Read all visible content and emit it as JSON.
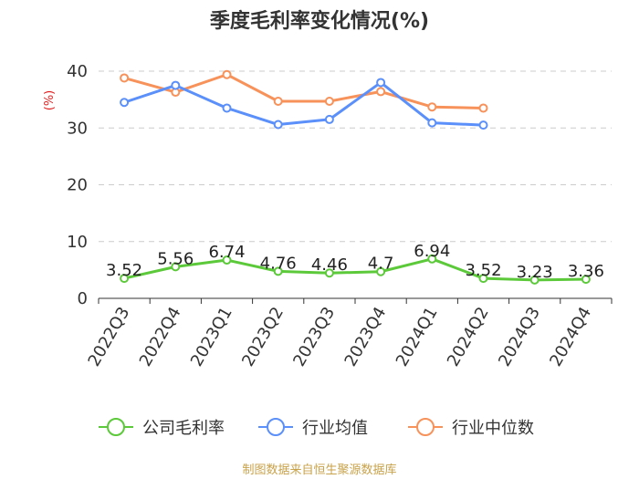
{
  "chart_data": {
    "type": "line",
    "title": "季度毛利率变化情况(%)",
    "ylabel": "(%)",
    "xlabel": "",
    "ylim": [
      0,
      40
    ],
    "yticks": [
      0,
      10,
      20,
      30,
      40
    ],
    "grid": true,
    "legend_position": "bottom",
    "categories": [
      "2022Q3",
      "2022Q4",
      "2023Q1",
      "2023Q2",
      "2023Q3",
      "2023Q4",
      "2024Q1",
      "2024Q2",
      "2024Q3",
      "2024Q4"
    ],
    "series": [
      {
        "name": "公司毛利率",
        "color": "#5cc93a",
        "values": [
          3.52,
          5.56,
          6.74,
          4.76,
          4.46,
          4.7,
          6.94,
          3.52,
          3.23,
          3.36
        ],
        "labels": [
          "3.52",
          "5.56",
          "6.74",
          "4.76",
          "4.46",
          "4.7",
          "6.94",
          "3.52",
          "3.23",
          "3.36"
        ]
      },
      {
        "name": "行业均值",
        "color": "#5b8ff9",
        "values": [
          34.5,
          37.5,
          33.5,
          30.6,
          31.5,
          38.0,
          30.9,
          30.5,
          null,
          null
        ]
      },
      {
        "name": "行业中位数",
        "color": "#f7925b",
        "values": [
          38.8,
          36.3,
          39.4,
          34.7,
          34.7,
          36.4,
          33.7,
          33.5,
          null,
          null
        ]
      }
    ]
  },
  "source": "制图数据来自恒生聚源数据库"
}
